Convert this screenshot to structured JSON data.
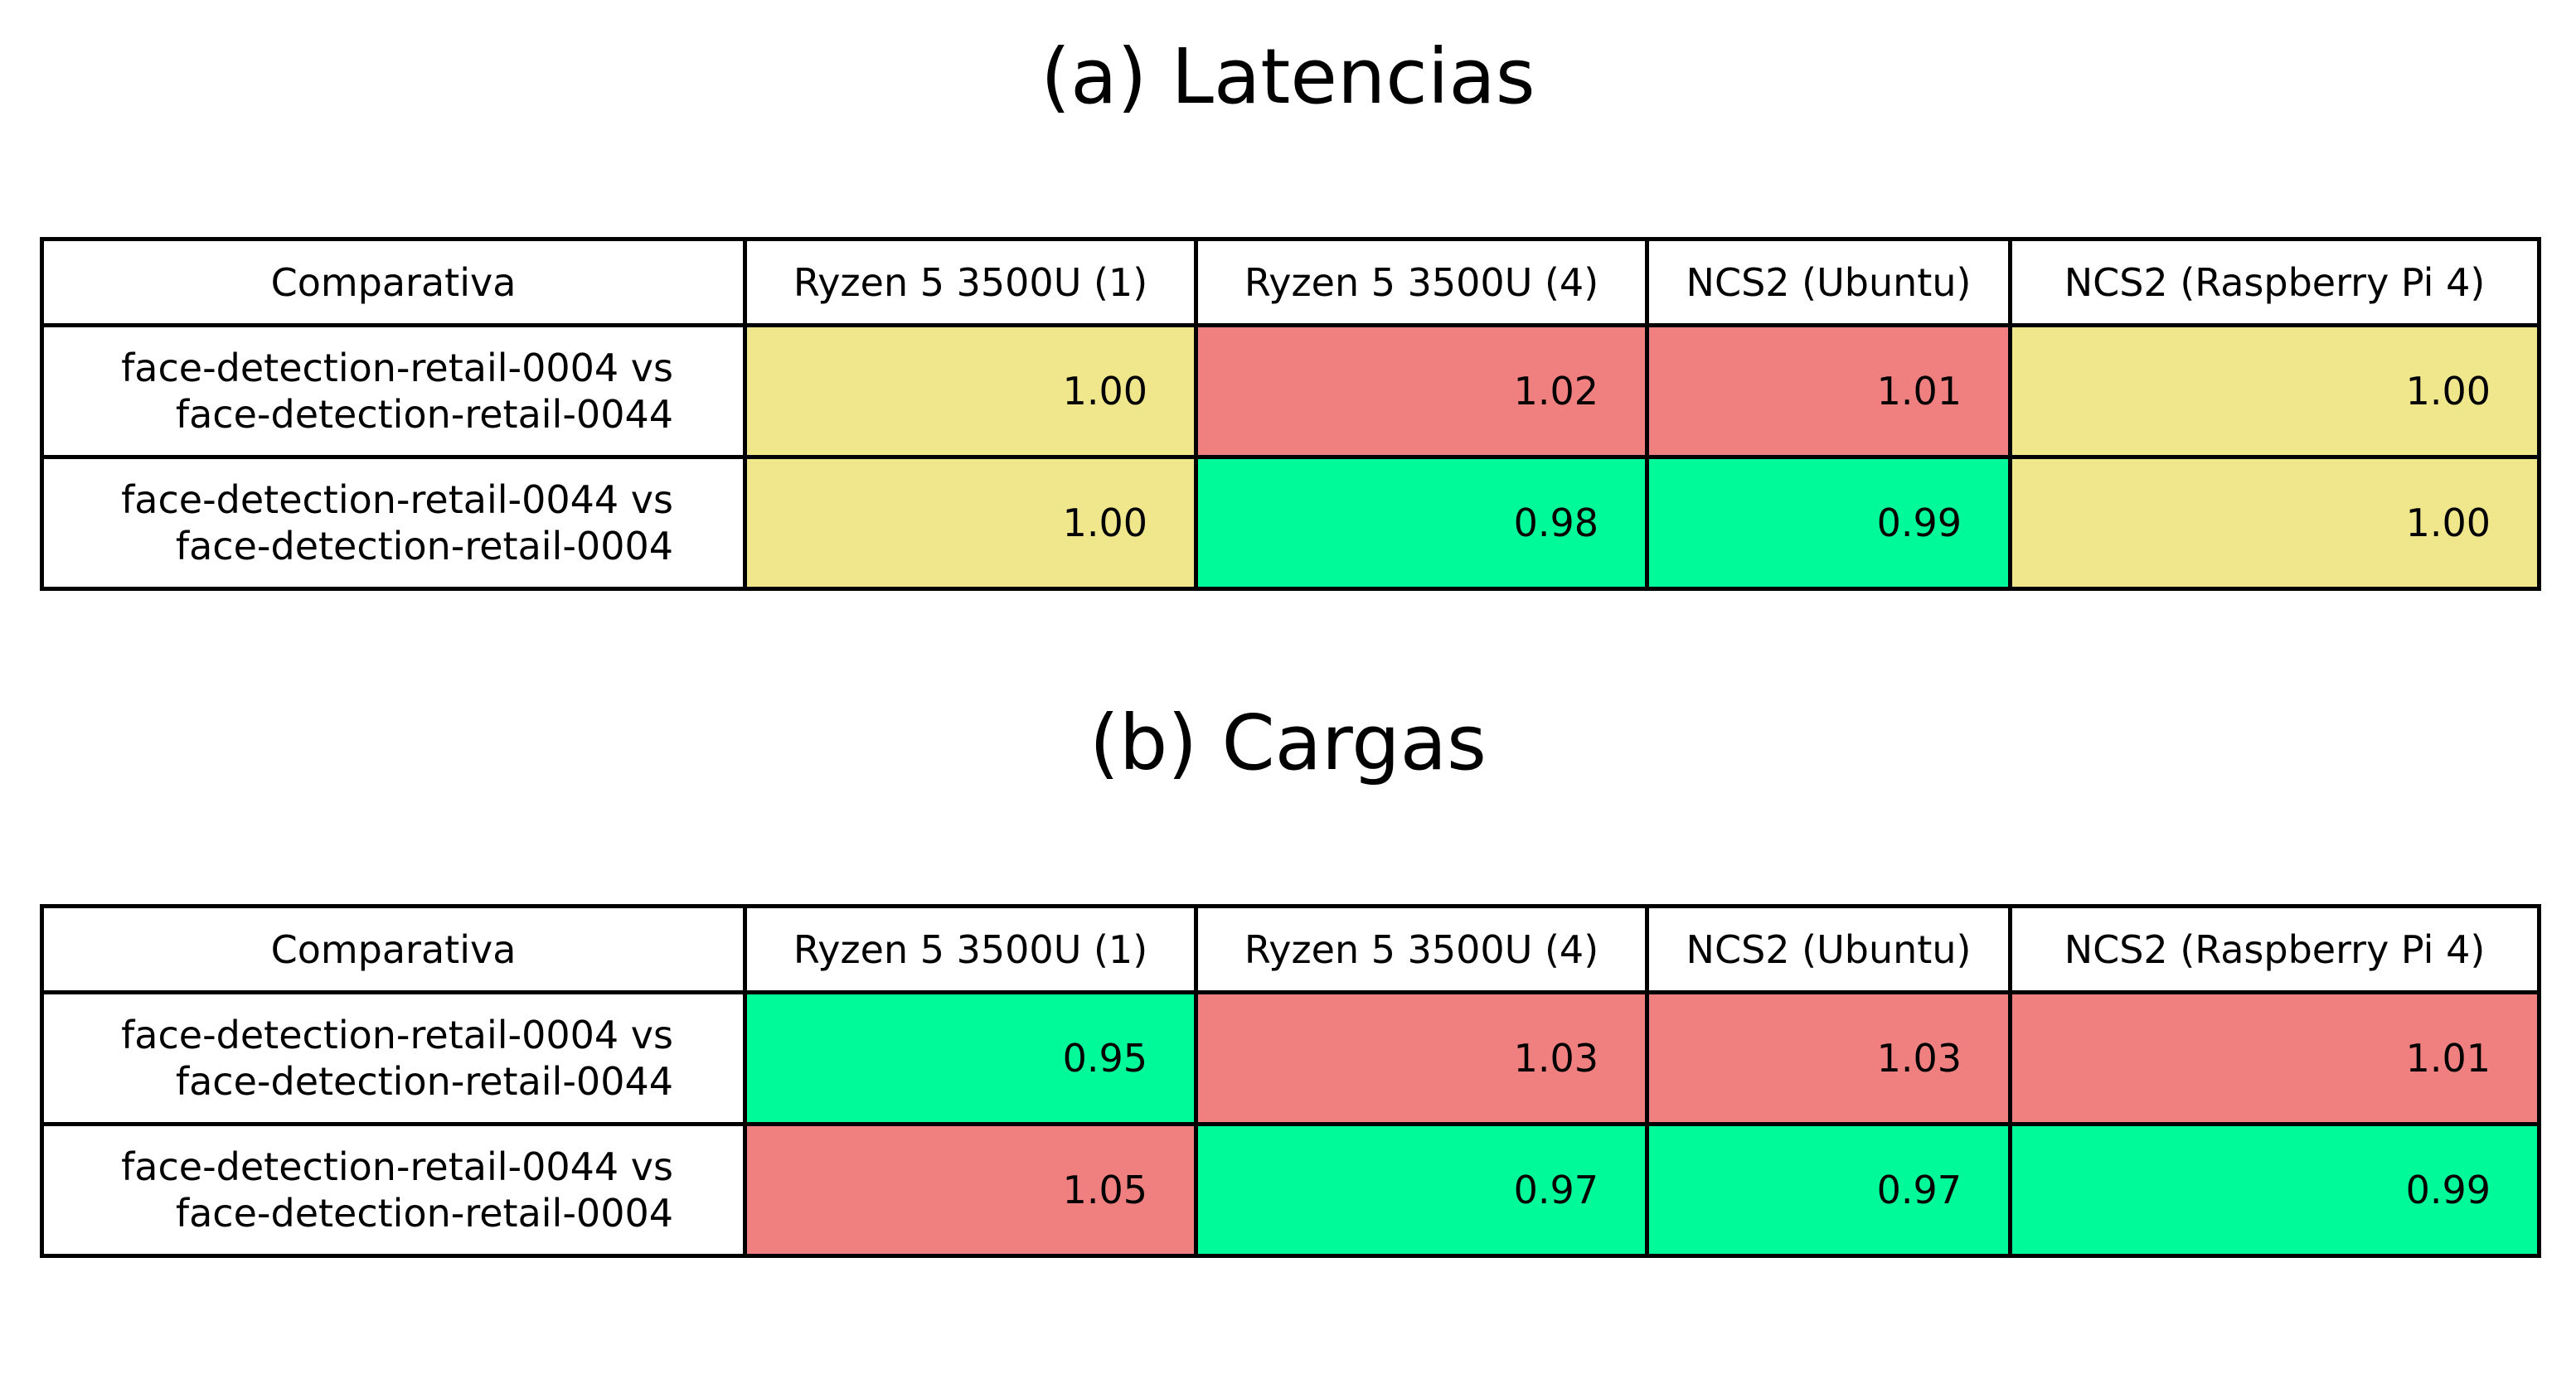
{
  "colors": {
    "equal": "#F0E68C",
    "worse": "#F08080",
    "better": "#00FA9A",
    "header_bg": "#FFFFFF",
    "border": "#000000"
  },
  "chart_data": [
    {
      "type": "table",
      "title": "(a) Latencias",
      "columns": [
        "Comparativa",
        "Ryzen 5 3500U (1)",
        "Ryzen 5 3500U (4)",
        "NCS2 (Ubuntu)",
        "NCS2 (Raspberry Pi 4)"
      ],
      "rows": [
        {
          "label": [
            "face-detection-retail-0004 vs",
            "face-detection-retail-0044"
          ],
          "values": [
            "1.00",
            "1.02",
            "1.01",
            "1.00"
          ],
          "colors": [
            "#F0E68C",
            "#F08080",
            "#F08080",
            "#F0E68C"
          ]
        },
        {
          "label": [
            "face-detection-retail-0044 vs",
            "face-detection-retail-0004"
          ],
          "values": [
            "1.00",
            "0.98",
            "0.99",
            "1.00"
          ],
          "colors": [
            "#F0E68C",
            "#00FA9A",
            "#00FA9A",
            "#F0E68C"
          ]
        }
      ]
    },
    {
      "type": "table",
      "title": "(b) Cargas",
      "columns": [
        "Comparativa",
        "Ryzen 5 3500U (1)",
        "Ryzen 5 3500U (4)",
        "NCS2 (Ubuntu)",
        "NCS2 (Raspberry Pi 4)"
      ],
      "rows": [
        {
          "label": [
            "face-detection-retail-0004 vs",
            "face-detection-retail-0044"
          ],
          "values": [
            "0.95",
            "1.03",
            "1.03",
            "1.01"
          ],
          "colors": [
            "#00FA9A",
            "#F08080",
            "#F08080",
            "#F08080"
          ]
        },
        {
          "label": [
            "face-detection-retail-0044 vs",
            "face-detection-retail-0004"
          ],
          "values": [
            "1.05",
            "0.97",
            "0.97",
            "0.99"
          ],
          "colors": [
            "#F08080",
            "#00FA9A",
            "#00FA9A",
            "#00FA9A"
          ]
        }
      ]
    }
  ]
}
